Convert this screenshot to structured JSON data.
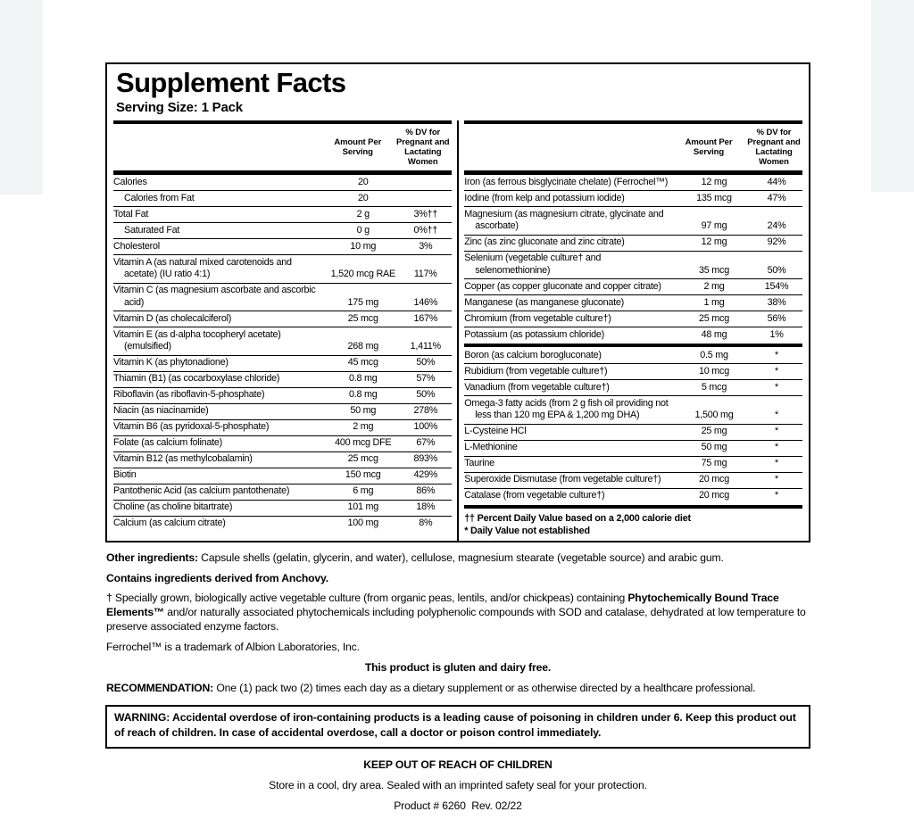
{
  "colors": {
    "ink": "#000000",
    "page_bg": "#ffffff",
    "corner_gray": "#f1f4f5"
  },
  "label": {
    "title": "Supplement Facts",
    "serving_size": "Serving Size: 1 Pack",
    "col_headers": {
      "amount": "Amount Per Serving",
      "dv": "% DV for Pregnant and Lactating Women"
    },
    "left_rows": [
      {
        "name": "Calories",
        "amount": "20",
        "dv": ""
      },
      {
        "name": "Calories from Fat",
        "amount": "20",
        "dv": "",
        "indent": true
      },
      {
        "name": "Total Fat",
        "amount": "2 g",
        "dv": "3%††"
      },
      {
        "name": "Saturated Fat",
        "amount": "0 g",
        "dv": "0%††",
        "indent": true
      },
      {
        "name": "Cholesterol",
        "amount": "10 mg",
        "dv": "3%"
      },
      {
        "name": "Vitamin A (as natural mixed carotenoids and acetate) (IU ratio 4:1)",
        "amount": "1,520 mcg RAE",
        "dv": "117%"
      },
      {
        "name": "Vitamin C (as magnesium ascorbate and ascorbic acid)",
        "amount": "175 mg",
        "dv": "146%"
      },
      {
        "name": "Vitamin D (as cholecalciferol)",
        "amount": "25 mcg",
        "dv": "167%"
      },
      {
        "name": "Vitamin E (as d-alpha tocopheryl acetate) (emulsified)",
        "amount": "268 mg",
        "dv": "1,411%"
      },
      {
        "name": "Vitamin K (as phytonadione)",
        "amount": "45 mcg",
        "dv": "50%"
      },
      {
        "name": "Thiamin (B1) (as cocarboxylase chloride)",
        "amount": "0.8 mg",
        "dv": "57%"
      },
      {
        "name": "Riboflavin (as riboflavin-5-phosphate)",
        "amount": "0.8 mg",
        "dv": "50%"
      },
      {
        "name": "Niacin (as niacinamide)",
        "amount": "50 mg",
        "dv": "278%"
      },
      {
        "name": "Vitamin B6 (as pyridoxal-5-phosphate)",
        "amount": "2 mg",
        "dv": "100%"
      },
      {
        "name": "Folate (as calcium folinate)",
        "amount": "400 mcg DFE",
        "dv": "67%"
      },
      {
        "name": "Vitamin B12 (as methylcobalamin)",
        "amount": "25 mcg",
        "dv": "893%"
      },
      {
        "name": "Biotin",
        "amount": "150 mcg",
        "dv": "429%"
      },
      {
        "name": "Pantothenic Acid (as calcium pantothenate)",
        "amount": "6 mg",
        "dv": "86%"
      },
      {
        "name": "Choline (as choline bitartrate)",
        "amount": "101 mg",
        "dv": "18%"
      },
      {
        "name": "Calcium (as calcium citrate)",
        "amount": "100 mg",
        "dv": "8%"
      }
    ],
    "right_rows": [
      {
        "name": "Iron (as ferrous bisglycinate chelate) (Ferrochel™)",
        "amount": "12 mg",
        "dv": "44%"
      },
      {
        "name": "Iodine (from kelp and potassium iodide)",
        "amount": "135 mcg",
        "dv": "47%"
      },
      {
        "name": "Magnesium (as magnesium citrate, glycinate and ascorbate)",
        "amount": "97 mg",
        "dv": "24%"
      },
      {
        "name": "Zinc (as zinc gluconate and zinc citrate)",
        "amount": "12 mg",
        "dv": "92%"
      },
      {
        "name": "Selenium (vegetable culture† and selenomethionine)",
        "amount": "35 mcg",
        "dv": "50%"
      },
      {
        "name": "Copper (as copper gluconate and copper citrate)",
        "amount": "2 mg",
        "dv": "154%"
      },
      {
        "name": "Manganese (as manganese gluconate)",
        "amount": "1 mg",
        "dv": "38%"
      },
      {
        "name": "Chromium (from vegetable culture†)",
        "amount": "25 mcg",
        "dv": "56%"
      },
      {
        "name": "Potassium (as potassium chloride)",
        "amount": "48 mg",
        "dv": "1%"
      },
      {
        "name": "Boron (as calcium borogluconate)",
        "amount": "0.5 mg",
        "dv": "*",
        "divider": true
      },
      {
        "name": "Rubidium (from vegetable culture†)",
        "amount": "10 mcg",
        "dv": "*"
      },
      {
        "name": "Vanadium (from vegetable culture†)",
        "amount": "5 mcg",
        "dv": "*"
      },
      {
        "name": "Omega-3 fatty acids (from 2 g fish oil providing not less than 120 mg EPA & 1,200 mg DHA)",
        "amount": "1,500 mg",
        "dv": "*"
      },
      {
        "name": "L-Cysteine HCl",
        "amount": "25 mg",
        "dv": "*"
      },
      {
        "name": "L-Methionine",
        "amount": "50 mg",
        "dv": "*"
      },
      {
        "name": "Taurine",
        "amount": "75 mg",
        "dv": "*"
      },
      {
        "name": "Superoxide Dismutase (from vegetable culture†)",
        "amount": "20 mcg",
        "dv": "*"
      },
      {
        "name": "Catalase (from vegetable culture†)",
        "amount": "20 mcg",
        "dv": "*"
      }
    ],
    "footnotes": [
      "†† Percent Daily Value based on a 2,000 calorie diet",
      "* Daily Value not established"
    ]
  },
  "footer": {
    "other_label": "Other ingredients:",
    "other_text": " Capsule shells (gelatin, glycerin, and water), cellulose, magnesium stearate (vegetable source) and arabic gum.",
    "anchovy": "Contains ingredients derived from Anchovy.",
    "dagger_pre": "† Specially grown, biologically active vegetable culture (from organic peas, lentils, and/or chickpeas) containing ",
    "dagger_bold": "Phytochemically Bound Trace Elements™",
    "dagger_post": " and/or naturally associated phytochemicals including polyphenolic compounds with SOD and catalase, dehydrated at low temperature to preserve associated enzyme factors.",
    "ferrochel": "Ferrochel™ is a trademark of Albion Laboratories, Inc.",
    "gluten_free": "This product is gluten and dairy free.",
    "recommendation_label": "RECOMMENDATION:",
    "recommendation_text": " One (1) pack two (2) times each day as a dietary supplement or as otherwise directed by a healthcare professional.",
    "warning_label": "WARNING:",
    "warning_text": " Accidental overdose of iron-containing products is a leading cause of poisoning in children under 6. Keep this product out of reach of children. In case of accidental overdose, call a doctor or poison control immediately.",
    "keep_out": "KEEP OUT OF REACH OF CHILDREN",
    "store": "Store in a cool, dry area. Sealed with an imprinted safety seal for your protection.",
    "product_rev": "Product # 6260  Rev. 02/22"
  }
}
